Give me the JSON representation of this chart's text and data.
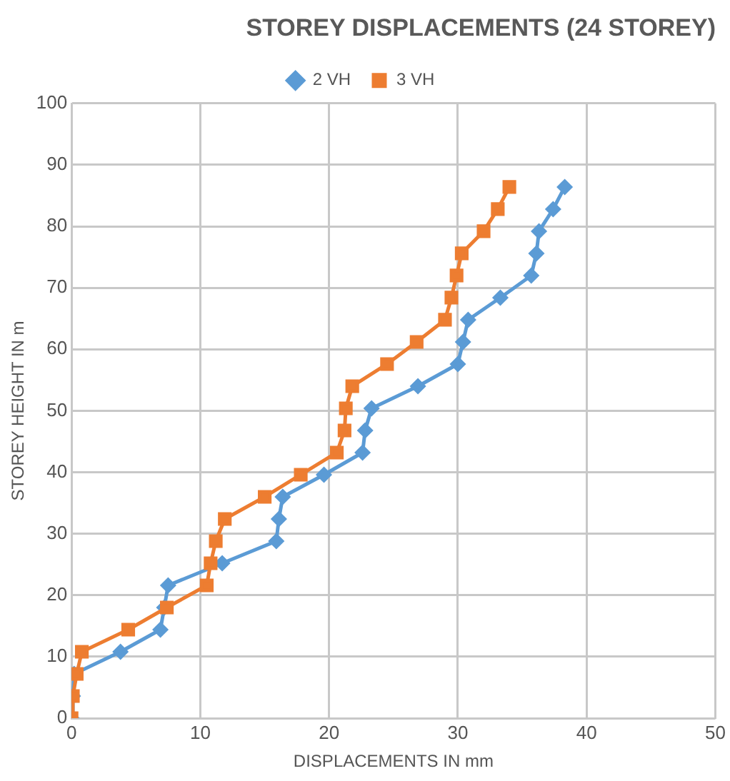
{
  "chart_data": {
    "type": "line",
    "title": "STOREY DISPLACEMENTS (24 STOREY)",
    "xlabel": "DISPLACEMENTS IN mm",
    "ylabel": "STOREY HEIGHT IN m",
    "xlim": [
      0,
      50
    ],
    "xticks": [
      0,
      10,
      20,
      30,
      40,
      50
    ],
    "ylim": [
      0,
      100
    ],
    "yticks": [
      0,
      10,
      20,
      30,
      40,
      50,
      60,
      70,
      80,
      90,
      100
    ],
    "grid": true,
    "legend": "top",
    "line_style": "solid",
    "series": [
      {
        "name": "2 VH",
        "color": "#5b9bd5",
        "marker": "diamond",
        "x": [
          0,
          0.1,
          0.2,
          3.8,
          6.9,
          7.2,
          7.5,
          11.7,
          15.9,
          16.1,
          16.4,
          19.6,
          22.6,
          22.8,
          23.3,
          26.9,
          30,
          30.4,
          30.8,
          33.3,
          35.7,
          36.1,
          36.3,
          37.4,
          38.3
        ],
        "values": [
          0,
          3.6,
          7.2,
          10.8,
          14.4,
          18,
          21.6,
          25.2,
          28.8,
          32.4,
          36,
          39.6,
          43.2,
          46.8,
          50.4,
          54,
          57.6,
          61.2,
          64.8,
          68.4,
          72,
          75.6,
          79.2,
          82.8,
          86.4
        ]
      },
      {
        "name": "3 VH",
        "color": "#ed7d31",
        "marker": "square",
        "x": [
          0,
          0.1,
          0.4,
          0.8,
          4.4,
          7.4,
          10.5,
          10.8,
          11.2,
          11.9,
          15,
          17.8,
          20.6,
          21.2,
          21.3,
          21.8,
          24.5,
          26.8,
          29,
          29.5,
          29.9,
          30.3,
          32,
          33.1,
          34
        ],
        "values": [
          0,
          3.6,
          7.2,
          10.8,
          14.4,
          18,
          21.6,
          25.2,
          28.8,
          32.4,
          36,
          39.6,
          43.2,
          46.8,
          50.4,
          54,
          57.6,
          61.2,
          64.8,
          68.4,
          72,
          75.6,
          79.2,
          82.8,
          86.4
        ]
      }
    ]
  }
}
